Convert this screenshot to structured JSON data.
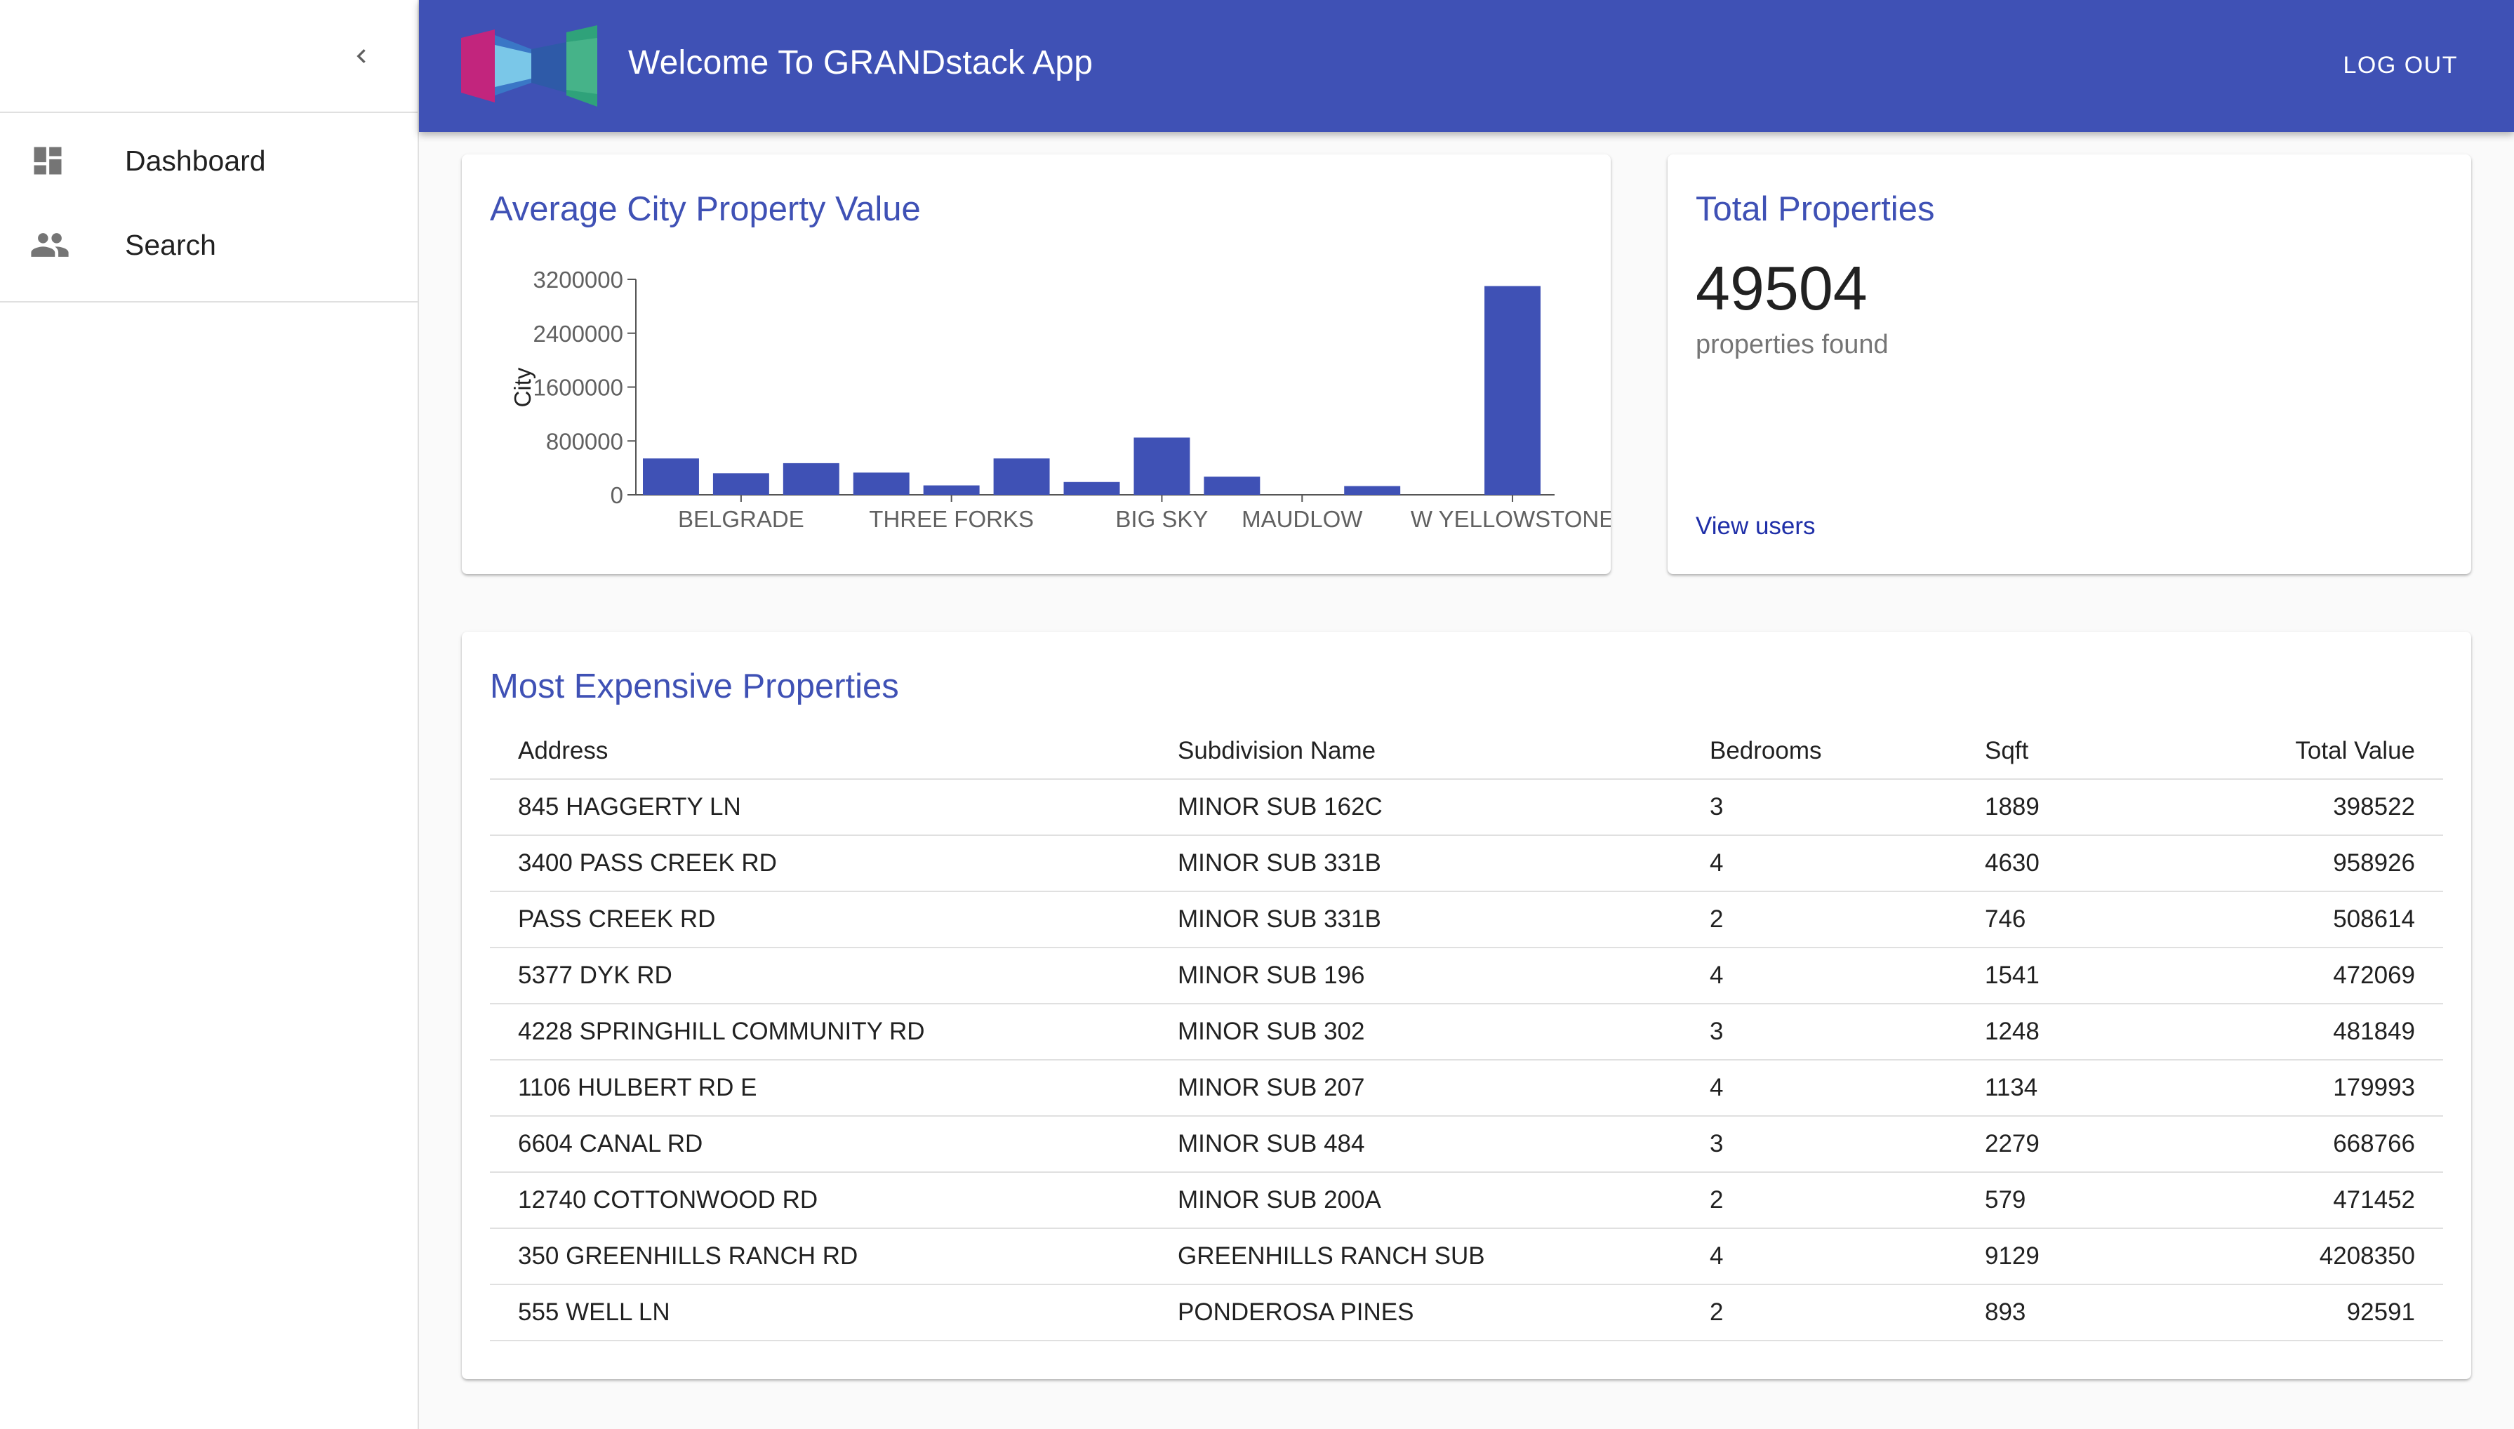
{
  "app": {
    "title": "Welcome To GRANDstack App",
    "logout_label": "LOG OUT",
    "accent": "#3f51b5"
  },
  "sidebar": {
    "items": [
      {
        "label": "Dashboard",
        "icon": "dashboard-icon"
      },
      {
        "label": "Search",
        "icon": "people-icon"
      }
    ]
  },
  "chart_card": {
    "title": "Average City Property Value"
  },
  "chart_data": {
    "type": "bar",
    "ylabel": "City",
    "yticks": [
      "3200000",
      "2400000",
      "1600000",
      "800000",
      "0"
    ],
    "ylim": [
      0,
      3200000
    ],
    "xtick_labels": [
      "BELGRADE",
      "THREE FORKS",
      "BIG SKY",
      "MAUDLOW",
      "W YELLOWSTONE"
    ],
    "values": [
      540000,
      320000,
      470000,
      330000,
      140000,
      540000,
      190000,
      850000,
      270000,
      0,
      130000,
      0,
      3100000
    ],
    "color": "#3f51b5"
  },
  "total_card": {
    "title": "Total Properties",
    "count": "49504",
    "subtitle": "properties found",
    "link": "View users"
  },
  "table_card": {
    "title": "Most Expensive Properties",
    "columns": [
      "Address",
      "Subdivision Name",
      "Bedrooms",
      "Sqft",
      "Total Value"
    ],
    "rows": [
      [
        "845 HAGGERTY LN",
        "MINOR SUB 162C",
        "3",
        "1889",
        "398522"
      ],
      [
        "3400 PASS CREEK RD",
        "MINOR SUB 331B",
        "4",
        "4630",
        "958926"
      ],
      [
        "PASS CREEK RD",
        "MINOR SUB 331B",
        "2",
        "746",
        "508614"
      ],
      [
        "5377 DYK RD",
        "MINOR SUB 196",
        "4",
        "1541",
        "472069"
      ],
      [
        "4228 SPRINGHILL COMMUNITY RD",
        "MINOR SUB 302",
        "3",
        "1248",
        "481849"
      ],
      [
        "1106 HULBERT RD E",
        "MINOR SUB 207",
        "4",
        "1134",
        "179993"
      ],
      [
        "6604 CANAL RD",
        "MINOR SUB 484",
        "3",
        "2279",
        "668766"
      ],
      [
        "12740 COTTONWOOD RD",
        "MINOR SUB 200A",
        "2",
        "579",
        "471452"
      ],
      [
        "350 GREENHILLS RANCH RD",
        "GREENHILLS RANCH SUB",
        "4",
        "9129",
        "4208350"
      ],
      [
        "555 WELL LN",
        "PONDEROSA PINES",
        "2",
        "893",
        "92591"
      ]
    ]
  }
}
